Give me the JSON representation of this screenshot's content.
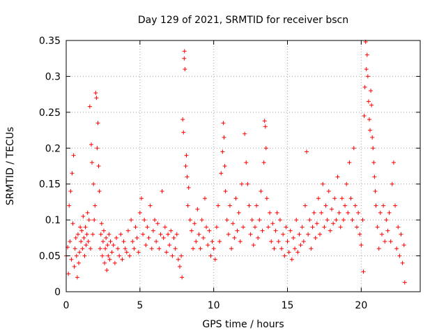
{
  "chart_data": {
    "type": "scatter",
    "title": "Day 129 of 2021, SRMTID for receiver bscn",
    "xlabel": "GPS time / hours",
    "ylabel": "SRMTID / TECUs",
    "xlim": [
      0,
      24
    ],
    "ylim": [
      0,
      0.35
    ],
    "xticks": [
      0,
      5,
      10,
      15,
      20
    ],
    "xtick_labels": [
      "0",
      "5",
      "10",
      "15",
      "20"
    ],
    "yticks": [
      0,
      0.05,
      0.1,
      0.15,
      0.2,
      0.25,
      0.3,
      0.35
    ],
    "ytick_labels": [
      "0",
      "0.05",
      "0.1",
      "0.15",
      "0.2",
      "0.25",
      "0.3",
      "0.35"
    ],
    "grid": true,
    "marker": "plus",
    "series": [
      {
        "name": "SRMTID",
        "color": "#ff0000",
        "points": [
          [
            0.0,
            0.05
          ],
          [
            0.1,
            0.062
          ],
          [
            0.15,
            0.025
          ],
          [
            0.2,
            0.12
          ],
          [
            0.25,
            0.07
          ],
          [
            0.3,
            0.14
          ],
          [
            0.35,
            0.045
          ],
          [
            0.4,
            0.165
          ],
          [
            0.45,
            0.095
          ],
          [
            0.5,
            0.19
          ],
          [
            0.55,
            0.035
          ],
          [
            0.6,
            0.06
          ],
          [
            0.65,
            0.075
          ],
          [
            0.7,
            0.05
          ],
          [
            0.75,
            0.02
          ],
          [
            0.8,
            0.08
          ],
          [
            0.85,
            0.04
          ],
          [
            0.9,
            0.055
          ],
          [
            0.95,
            0.09
          ],
          [
            1.0,
            0.07
          ],
          [
            1.05,
            0.085
          ],
          [
            1.1,
            0.06
          ],
          [
            1.15,
            0.105
          ],
          [
            1.2,
            0.075
          ],
          [
            1.25,
            0.05
          ],
          [
            1.3,
            0.09
          ],
          [
            1.35,
            0.065
          ],
          [
            1.4,
            0.08
          ],
          [
            1.45,
            0.11
          ],
          [
            1.5,
            0.07
          ],
          [
            1.55,
            0.1
          ],
          [
            1.6,
            0.258
          ],
          [
            1.65,
            0.06
          ],
          [
            1.7,
            0.205
          ],
          [
            1.75,
            0.18
          ],
          [
            1.8,
            0.08
          ],
          [
            1.85,
            0.15
          ],
          [
            1.9,
            0.1
          ],
          [
            1.95,
            0.12
          ],
          [
            2.0,
            0.277
          ],
          [
            2.05,
            0.27
          ],
          [
            2.1,
            0.2
          ],
          [
            2.15,
            0.235
          ],
          [
            2.2,
            0.175
          ],
          [
            2.25,
            0.14
          ],
          [
            2.3,
            0.06
          ],
          [
            2.35,
            0.08
          ],
          [
            2.4,
            0.095
          ],
          [
            2.45,
            0.05
          ],
          [
            2.5,
            0.07
          ],
          [
            2.55,
            0.085
          ],
          [
            2.6,
            0.04
          ],
          [
            2.65,
            0.06
          ],
          [
            2.7,
            0.075
          ],
          [
            2.75,
            0.03
          ],
          [
            2.8,
            0.065
          ],
          [
            2.85,
            0.05
          ],
          [
            2.9,
            0.08
          ],
          [
            2.95,
            0.045
          ],
          [
            3.0,
            0.07
          ],
          [
            3.1,
            0.055
          ],
          [
            3.2,
            0.065
          ],
          [
            3.3,
            0.04
          ],
          [
            3.4,
            0.075
          ],
          [
            3.5,
            0.06
          ],
          [
            3.6,
            0.05
          ],
          [
            3.7,
            0.08
          ],
          [
            3.8,
            0.045
          ],
          [
            3.9,
            0.07
          ],
          [
            4.0,
            0.06
          ],
          [
            4.1,
            0.055
          ],
          [
            4.2,
            0.085
          ],
          [
            4.3,
            0.05
          ],
          [
            4.4,
            0.1
          ],
          [
            4.5,
            0.07
          ],
          [
            4.6,
            0.06
          ],
          [
            4.7,
            0.09
          ],
          [
            4.8,
            0.075
          ],
          [
            4.9,
            0.055
          ],
          [
            5.0,
            0.11
          ],
          [
            5.1,
            0.13
          ],
          [
            5.2,
            0.08
          ],
          [
            5.3,
            0.1
          ],
          [
            5.4,
            0.065
          ],
          [
            5.5,
            0.09
          ],
          [
            5.6,
            0.075
          ],
          [
            5.7,
            0.12
          ],
          [
            5.8,
            0.06
          ],
          [
            5.9,
            0.085
          ],
          [
            6.0,
            0.1
          ],
          [
            6.1,
            0.07
          ],
          [
            6.2,
            0.095
          ],
          [
            6.3,
            0.06
          ],
          [
            6.4,
            0.08
          ],
          [
            6.5,
            0.14
          ],
          [
            6.6,
            0.075
          ],
          [
            6.7,
            0.09
          ],
          [
            6.8,
            0.055
          ],
          [
            6.9,
            0.08
          ],
          [
            7.0,
            0.065
          ],
          [
            7.1,
            0.085
          ],
          [
            7.2,
            0.05
          ],
          [
            7.3,
            0.075
          ],
          [
            7.4,
            0.06
          ],
          [
            7.5,
            0.08
          ],
          [
            7.6,
            0.045
          ],
          [
            7.7,
            0.035
          ],
          [
            7.8,
            0.05
          ],
          [
            7.85,
            0.02
          ],
          [
            7.9,
            0.24
          ],
          [
            7.95,
            0.222
          ],
          [
            8.0,
            0.325
          ],
          [
            8.02,
            0.335
          ],
          [
            8.05,
            0.31
          ],
          [
            8.1,
            0.175
          ],
          [
            8.15,
            0.19
          ],
          [
            8.2,
            0.16
          ],
          [
            8.25,
            0.12
          ],
          [
            8.3,
            0.145
          ],
          [
            8.4,
            0.1
          ],
          [
            8.5,
            0.085
          ],
          [
            8.6,
            0.06
          ],
          [
            8.7,
            0.095
          ],
          [
            8.8,
            0.07
          ],
          [
            8.9,
            0.115
          ],
          [
            9.0,
            0.08
          ],
          [
            9.1,
            0.06
          ],
          [
            9.2,
            0.1
          ],
          [
            9.3,
            0.075
          ],
          [
            9.4,
            0.13
          ],
          [
            9.5,
            0.09
          ],
          [
            9.6,
            0.065
          ],
          [
            9.7,
            0.085
          ],
          [
            9.8,
            0.05
          ],
          [
            9.9,
            0.07
          ],
          [
            10.0,
            0.06
          ],
          [
            10.1,
            0.045
          ],
          [
            10.2,
            0.09
          ],
          [
            10.3,
            0.12
          ],
          [
            10.4,
            0.07
          ],
          [
            10.5,
            0.165
          ],
          [
            10.6,
            0.195
          ],
          [
            10.65,
            0.235
          ],
          [
            10.7,
            0.215
          ],
          [
            10.75,
            0.175
          ],
          [
            10.8,
            0.14
          ],
          [
            10.9,
            0.1
          ],
          [
            11.0,
            0.08
          ],
          [
            11.1,
            0.12
          ],
          [
            11.2,
            0.06
          ],
          [
            11.3,
            0.095
          ],
          [
            11.4,
            0.075
          ],
          [
            11.5,
            0.13
          ],
          [
            11.6,
            0.085
          ],
          [
            11.7,
            0.11
          ],
          [
            11.8,
            0.07
          ],
          [
            11.9,
            0.15
          ],
          [
            12.0,
            0.09
          ],
          [
            12.1,
            0.22
          ],
          [
            12.2,
            0.18
          ],
          [
            12.3,
            0.15
          ],
          [
            12.4,
            0.12
          ],
          [
            12.5,
            0.08
          ],
          [
            12.6,
            0.1
          ],
          [
            12.7,
            0.065
          ],
          [
            12.8,
            0.09
          ],
          [
            12.9,
            0.12
          ],
          [
            13.0,
            0.075
          ],
          [
            13.1,
            0.1
          ],
          [
            13.2,
            0.14
          ],
          [
            13.3,
            0.085
          ],
          [
            13.4,
            0.18
          ],
          [
            13.45,
            0.238
          ],
          [
            13.5,
            0.23
          ],
          [
            13.55,
            0.2
          ],
          [
            13.6,
            0.13
          ],
          [
            13.7,
            0.09
          ],
          [
            13.8,
            0.11
          ],
          [
            13.9,
            0.07
          ],
          [
            14.0,
            0.095
          ],
          [
            14.1,
            0.06
          ],
          [
            14.2,
            0.085
          ],
          [
            14.3,
            0.11
          ],
          [
            14.4,
            0.07
          ],
          [
            14.5,
            0.1
          ],
          [
            14.6,
            0.06
          ],
          [
            14.7,
            0.08
          ],
          [
            14.8,
            0.05
          ],
          [
            14.9,
            0.09
          ],
          [
            15.0,
            0.07
          ],
          [
            15.1,
            0.055
          ],
          [
            15.2,
            0.085
          ],
          [
            15.3,
            0.045
          ],
          [
            15.4,
            0.075
          ],
          [
            15.5,
            0.06
          ],
          [
            15.6,
            0.1
          ],
          [
            15.7,
            0.055
          ],
          [
            15.8,
            0.08
          ],
          [
            15.9,
            0.065
          ],
          [
            16.0,
            0.09
          ],
          [
            16.1,
            0.07
          ],
          [
            16.2,
            0.12
          ],
          [
            16.3,
            0.195
          ],
          [
            16.4,
            0.08
          ],
          [
            16.5,
            0.1
          ],
          [
            16.6,
            0.06
          ],
          [
            16.7,
            0.09
          ],
          [
            16.8,
            0.11
          ],
          [
            16.9,
            0.075
          ],
          [
            17.0,
            0.095
          ],
          [
            17.1,
            0.13
          ],
          [
            17.2,
            0.08
          ],
          [
            17.3,
            0.11
          ],
          [
            17.4,
            0.15
          ],
          [
            17.5,
            0.09
          ],
          [
            17.6,
            0.12
          ],
          [
            17.7,
            0.1
          ],
          [
            17.8,
            0.14
          ],
          [
            17.9,
            0.085
          ],
          [
            18.0,
            0.115
          ],
          [
            18.1,
            0.095
          ],
          [
            18.2,
            0.13
          ],
          [
            18.3,
            0.1
          ],
          [
            18.4,
            0.16
          ],
          [
            18.5,
            0.11
          ],
          [
            18.6,
            0.09
          ],
          [
            18.7,
            0.13
          ],
          [
            18.8,
            0.1
          ],
          [
            18.9,
            0.12
          ],
          [
            19.0,
            0.15
          ],
          [
            19.1,
            0.11
          ],
          [
            19.2,
            0.18
          ],
          [
            19.3,
            0.13
          ],
          [
            19.4,
            0.1
          ],
          [
            19.5,
            0.2
          ],
          [
            19.6,
            0.12
          ],
          [
            19.7,
            0.09
          ],
          [
            19.8,
            0.11
          ],
          [
            19.9,
            0.08
          ],
          [
            20.0,
            0.065
          ],
          [
            20.1,
            0.1
          ],
          [
            20.15,
            0.028
          ],
          [
            20.2,
            0.245
          ],
          [
            20.25,
            0.285
          ],
          [
            20.3,
            0.348
          ],
          [
            20.35,
            0.31
          ],
          [
            20.4,
            0.33
          ],
          [
            20.45,
            0.3
          ],
          [
            20.5,
            0.265
          ],
          [
            20.55,
            0.24
          ],
          [
            20.6,
            0.225
          ],
          [
            20.65,
            0.28
          ],
          [
            20.7,
            0.26
          ],
          [
            20.75,
            0.215
          ],
          [
            20.8,
            0.2
          ],
          [
            20.85,
            0.18
          ],
          [
            20.9,
            0.16
          ],
          [
            20.95,
            0.14
          ],
          [
            21.0,
            0.12
          ],
          [
            21.1,
            0.09
          ],
          [
            21.2,
            0.06
          ],
          [
            21.3,
            0.11
          ],
          [
            21.4,
            0.08
          ],
          [
            21.5,
            0.12
          ],
          [
            21.6,
            0.07
          ],
          [
            21.7,
            0.1
          ],
          [
            21.8,
            0.085
          ],
          [
            21.9,
            0.11
          ],
          [
            22.0,
            0.07
          ],
          [
            22.1,
            0.15
          ],
          [
            22.2,
            0.18
          ],
          [
            22.3,
            0.12
          ],
          [
            22.4,
            0.06
          ],
          [
            22.5,
            0.09
          ],
          [
            22.6,
            0.05
          ],
          [
            22.7,
            0.08
          ],
          [
            22.8,
            0.04
          ],
          [
            22.9,
            0.065
          ],
          [
            22.95,
            0.013
          ]
        ]
      }
    ]
  }
}
